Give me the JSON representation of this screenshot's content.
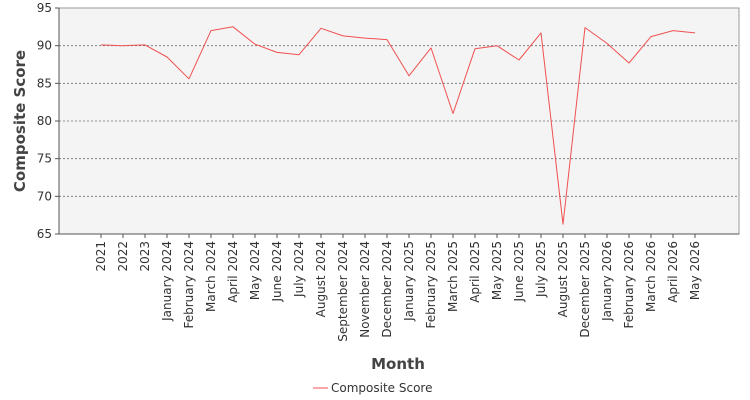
{
  "chart_data": {
    "type": "line",
    "title": "",
    "xlabel": "Month",
    "ylabel": "Composite Score",
    "ylim": [
      65,
      95
    ],
    "yticks": [
      65,
      70,
      75,
      80,
      85,
      90,
      95
    ],
    "grid": true,
    "legend_position": "bottom-center",
    "categories": [
      "2021",
      "2022",
      "2023",
      "January 2024",
      "February 2024",
      "March 2024",
      "April 2024",
      "May 2024",
      "June 2024",
      "July 2024",
      "August 2024",
      "September 2024",
      "November 2024",
      "December 2024",
      "January 2025",
      "February 2025",
      "March 2025",
      "April 2025",
      "May 2025",
      "June 2025",
      "July 2025",
      "August 2025",
      "December 2025",
      "January 2026",
      "February 2026",
      "March 2026",
      "April 2026",
      "May 2026"
    ],
    "series": [
      {
        "name": "Composite Score",
        "color": "#f05050",
        "values": [
          90.1,
          90.0,
          90.1,
          88.5,
          85.6,
          92.0,
          92.5,
          90.2,
          89.1,
          88.8,
          92.3,
          91.3,
          91.0,
          90.8,
          86.0,
          89.7,
          81.0,
          89.6,
          90.0,
          88.1,
          91.7,
          66.3,
          92.4,
          90.3,
          87.7,
          91.2,
          92.0,
          91.7
        ]
      }
    ]
  }
}
